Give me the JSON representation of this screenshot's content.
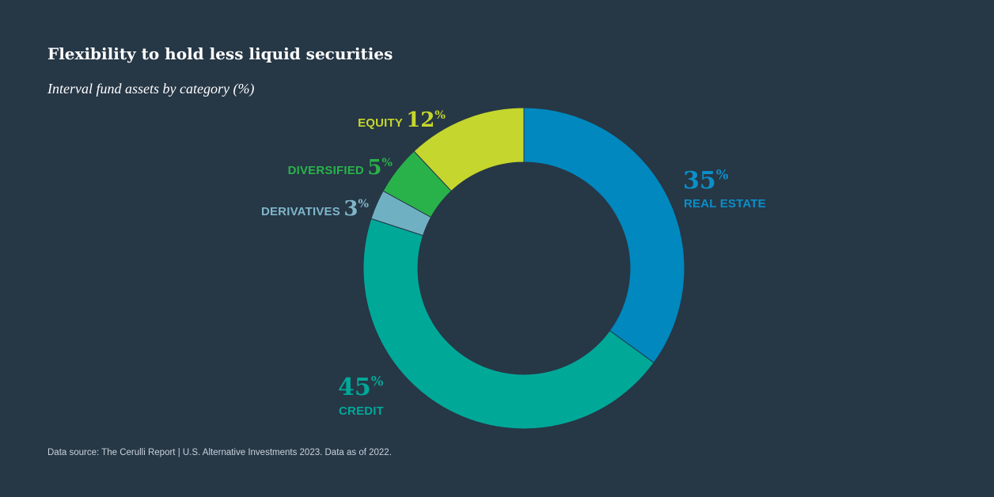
{
  "chart_data": {
    "type": "pie",
    "title": "Flexibility to hold less liquid securities",
    "subtitle": "Interval fund assets by category (%)",
    "categories": [
      "REAL ESTATE",
      "CREDIT",
      "DERIVATIVES",
      "DIVERSIFIED",
      "EQUITY"
    ],
    "values": [
      35,
      45,
      3,
      5,
      12
    ],
    "value_labels": [
      "35",
      "45",
      "3",
      "5",
      "12"
    ],
    "unit": "%",
    "colors": [
      "#0088bf",
      "#00a898",
      "#6fb1c2",
      "#29b24a",
      "#c5d62e"
    ],
    "label_colors": [
      "#0a8fc9",
      "#00a898",
      "#7fb6c8",
      "#29b24a",
      "#c5d62e"
    ],
    "donut": true,
    "legend": "none"
  },
  "footer": {
    "source": "Data source: The Cerulli Report | U.S. Alternative Investments 2023. Data as of 2022."
  }
}
